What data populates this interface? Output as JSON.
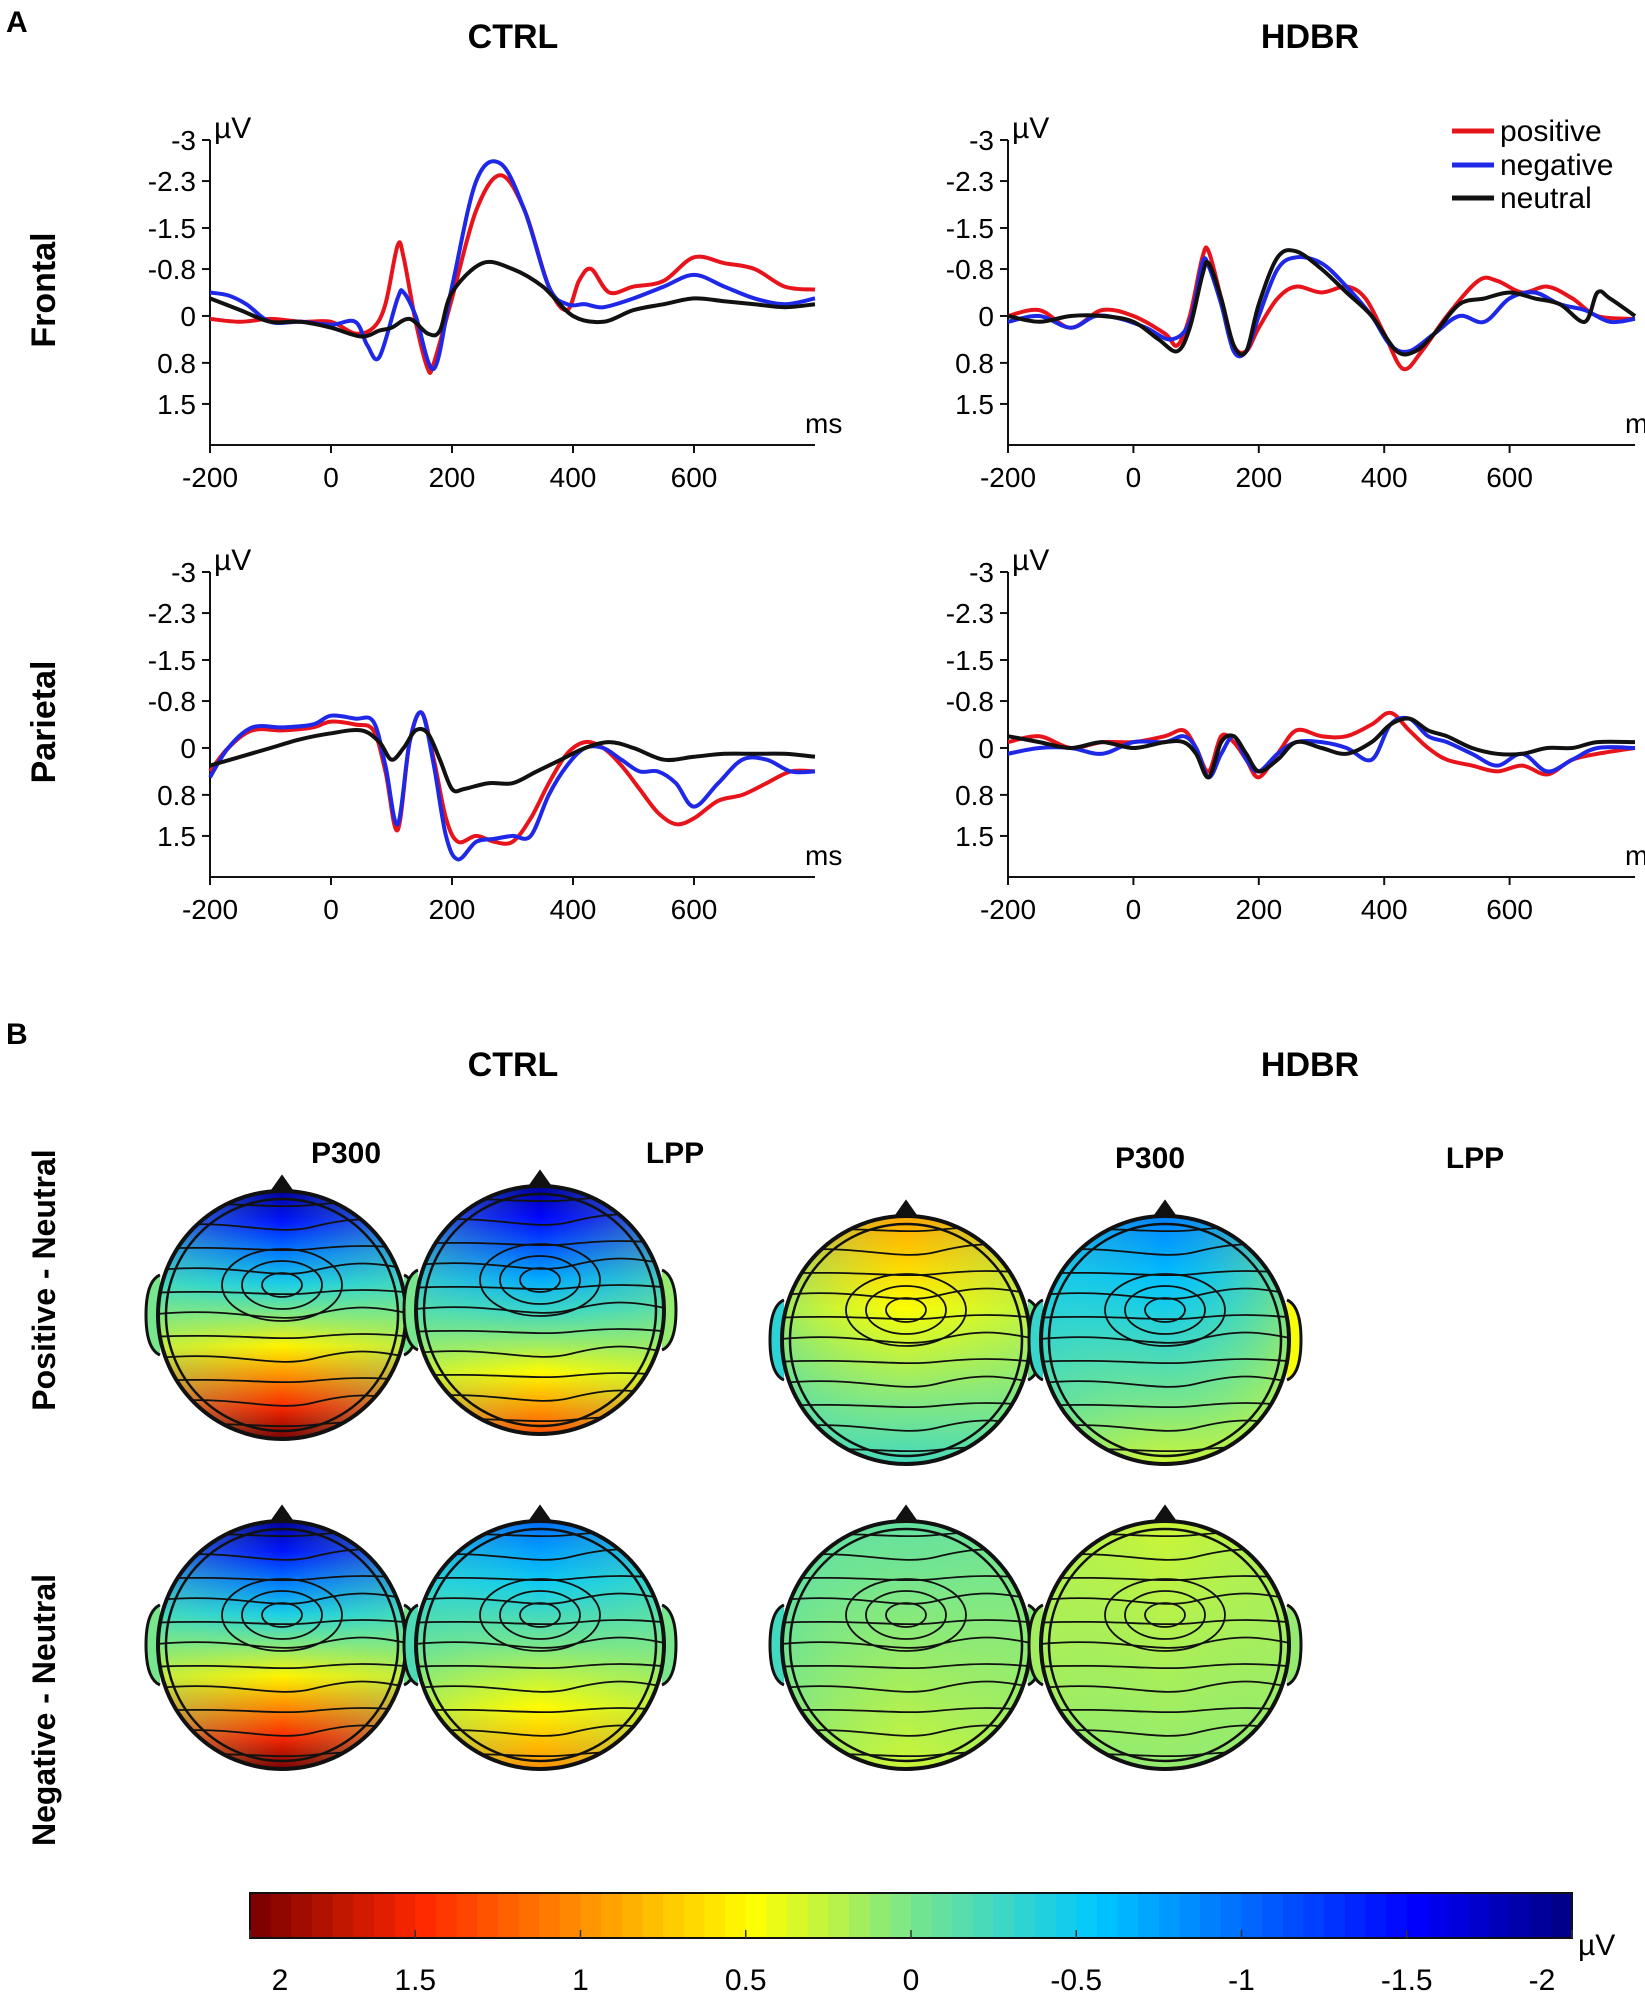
{
  "panel_a_label": "A",
  "panel_b_label": "B",
  "groups": [
    "CTRL",
    "HDBR"
  ],
  "regions": [
    "Frontal",
    "Parietal"
  ],
  "legend": [
    {
      "label": "positive",
      "color": "#e8141c"
    },
    {
      "label": "negative",
      "color": "#1e28e6"
    },
    {
      "label": "neutral",
      "color": "#111111"
    }
  ],
  "chart_data": [
    {
      "type": "line",
      "id": "ctrl-frontal",
      "group": "CTRL",
      "region": "Frontal",
      "xlabel": "ms",
      "ylabel": "µV",
      "xlim": [
        -200,
        800
      ],
      "ylim": [
        -3,
        2.2
      ],
      "x_ticks": [
        "-200",
        "0",
        "200",
        "400",
        "600"
      ],
      "y_ticks": [
        "-3",
        "-2.3",
        "-1.5",
        "-0.8",
        "0",
        "0.8",
        "1.5"
      ],
      "y_tick_values": [
        -3,
        -2.3,
        -1.5,
        -0.8,
        0,
        0.8,
        1.5
      ],
      "series": [
        {
          "name": "positive",
          "x": [
            -200,
            -150,
            -100,
            -50,
            0,
            40,
            70,
            90,
            110,
            120,
            140,
            160,
            170,
            200,
            240,
            280,
            320,
            360,
            390,
            410,
            430,
            460,
            500,
            550,
            600,
            650,
            700,
            750,
            800
          ],
          "y": [
            0.05,
            0.1,
            0.05,
            0.1,
            0.1,
            0.3,
            0.2,
            -0.2,
            -1.2,
            -1.0,
            0.1,
            0.9,
            0.8,
            -0.3,
            -1.8,
            -2.4,
            -1.8,
            -0.5,
            -0.1,
            -0.6,
            -0.8,
            -0.4,
            -0.5,
            -0.6,
            -1.0,
            -0.9,
            -0.8,
            -0.5,
            -0.45
          ]
        },
        {
          "name": "negative",
          "x": [
            -200,
            -170,
            -140,
            -100,
            -50,
            0,
            40,
            60,
            80,
            110,
            120,
            140,
            170,
            200,
            240,
            280,
            320,
            360,
            390,
            420,
            450,
            500,
            550,
            600,
            650,
            700,
            750,
            800
          ],
          "y": [
            -0.4,
            -0.35,
            -0.2,
            0.1,
            0.1,
            0.15,
            0.1,
            0.5,
            0.7,
            -0.3,
            -0.4,
            0.0,
            0.9,
            -0.5,
            -2.3,
            -2.6,
            -1.8,
            -0.5,
            -0.2,
            -0.2,
            -0.15,
            -0.3,
            -0.5,
            -0.7,
            -0.5,
            -0.3,
            -0.2,
            -0.3
          ]
        },
        {
          "name": "neutral",
          "x": [
            -200,
            -150,
            -100,
            -50,
            0,
            50,
            80,
            100,
            130,
            160,
            180,
            200,
            250,
            300,
            350,
            400,
            450,
            500,
            550,
            600,
            650,
            700,
            750,
            800
          ],
          "y": [
            -0.3,
            -0.1,
            0.1,
            0.1,
            0.2,
            0.35,
            0.25,
            0.2,
            0.05,
            0.3,
            0.25,
            -0.4,
            -0.9,
            -0.8,
            -0.5,
            0.0,
            0.1,
            -0.1,
            -0.2,
            -0.3,
            -0.25,
            -0.2,
            -0.15,
            -0.2
          ]
        }
      ]
    },
    {
      "type": "line",
      "id": "hdbr-frontal",
      "group": "HDBR",
      "region": "Frontal",
      "xlabel": "ms",
      "ylabel": "µV",
      "xlim": [
        -200,
        800
      ],
      "ylim": [
        -3,
        2.2
      ],
      "x_ticks": [
        "-200",
        "0",
        "200",
        "400",
        "600"
      ],
      "y_ticks": [
        "-3",
        "-2.3",
        "-1.5",
        "-0.8",
        "0",
        "0.8",
        "1.5"
      ],
      "y_tick_values": [
        -3,
        -2.3,
        -1.5,
        -0.8,
        0,
        0.8,
        1.5
      ],
      "series": [
        {
          "name": "positive",
          "x": [
            -200,
            -150,
            -100,
            -50,
            0,
            50,
            70,
            90,
            110,
            120,
            140,
            160,
            180,
            200,
            230,
            260,
            300,
            340,
            370,
            400,
            430,
            460,
            500,
            550,
            580,
            620,
            660,
            700,
            740,
            800
          ],
          "y": [
            0.0,
            -0.1,
            0.2,
            -0.1,
            0.0,
            0.3,
            0.5,
            0.0,
            -1.0,
            -1.1,
            -0.3,
            0.5,
            0.6,
            0.2,
            -0.3,
            -0.5,
            -0.4,
            -0.5,
            -0.3,
            0.3,
            0.9,
            0.6,
            0.0,
            -0.6,
            -0.6,
            -0.4,
            -0.5,
            -0.3,
            0.0,
            0.05
          ]
        },
        {
          "name": "negative",
          "x": [
            -200,
            -150,
            -100,
            -60,
            -20,
            20,
            60,
            90,
            110,
            120,
            140,
            160,
            180,
            200,
            230,
            260,
            300,
            340,
            380,
            410,
            440,
            480,
            520,
            560,
            600,
            640,
            680,
            720,
            760,
            800
          ],
          "y": [
            0.1,
            0.0,
            0.2,
            0.0,
            0.05,
            0.2,
            0.4,
            0.1,
            -0.9,
            -0.85,
            -0.2,
            0.6,
            0.6,
            0.0,
            -0.8,
            -1.0,
            -0.9,
            -0.5,
            0.0,
            0.5,
            0.6,
            0.3,
            0.0,
            0.1,
            -0.3,
            -0.4,
            -0.2,
            -0.1,
            0.1,
            0.05
          ]
        },
        {
          "name": "neutral",
          "x": [
            -200,
            -150,
            -100,
            -50,
            0,
            40,
            70,
            90,
            110,
            120,
            140,
            160,
            180,
            200,
            230,
            260,
            300,
            340,
            380,
            420,
            450,
            480,
            520,
            560,
            600,
            640,
            680,
            720,
            740,
            760,
            800
          ],
          "y": [
            0.0,
            0.1,
            0.0,
            0.0,
            0.1,
            0.4,
            0.6,
            0.2,
            -0.7,
            -0.9,
            -0.3,
            0.5,
            0.6,
            -0.2,
            -1.0,
            -1.1,
            -0.8,
            -0.4,
            0.0,
            0.6,
            0.6,
            0.3,
            -0.2,
            -0.3,
            -0.4,
            -0.3,
            -0.2,
            0.1,
            -0.4,
            -0.3,
            0.0
          ]
        }
      ]
    },
    {
      "type": "line",
      "id": "ctrl-parietal",
      "group": "CTRL",
      "region": "Parietal",
      "xlabel": "ms",
      "ylabel": "µV",
      "xlim": [
        -200,
        800
      ],
      "ylim": [
        -3,
        2.2
      ],
      "x_ticks": [
        "-200",
        "0",
        "200",
        "400",
        "600"
      ],
      "y_ticks": [
        "-3",
        "-2.3",
        "-1.5",
        "-0.8",
        "0",
        "0.8",
        "1.5"
      ],
      "y_tick_values": [
        -3,
        -2.3,
        -1.5,
        -0.8,
        0,
        0.8,
        1.5
      ],
      "series": [
        {
          "name": "positive",
          "x": [
            -200,
            -170,
            -130,
            -80,
            -30,
            0,
            40,
            70,
            90,
            110,
            130,
            150,
            170,
            190,
            210,
            240,
            270,
            300,
            330,
            360,
            390,
            420,
            450,
            480,
            510,
            540,
            570,
            600,
            640,
            680,
            720,
            760,
            800
          ],
          "y": [
            0.4,
            0.0,
            -0.3,
            -0.3,
            -0.35,
            -0.45,
            -0.4,
            -0.3,
            0.4,
            1.4,
            -0.1,
            -0.6,
            0.2,
            1.2,
            1.6,
            1.5,
            1.6,
            1.6,
            1.2,
            0.6,
            0.1,
            -0.1,
            0.0,
            0.3,
            0.7,
            1.1,
            1.3,
            1.2,
            0.9,
            0.8,
            0.6,
            0.4,
            0.4
          ]
        },
        {
          "name": "negative",
          "x": [
            -200,
            -170,
            -130,
            -80,
            -30,
            0,
            40,
            70,
            90,
            110,
            130,
            150,
            170,
            190,
            210,
            240,
            270,
            300,
            330,
            360,
            390,
            420,
            450,
            480,
            510,
            540,
            570,
            600,
            640,
            680,
            720,
            760,
            800
          ],
          "y": [
            0.5,
            0.0,
            -0.35,
            -0.35,
            -0.4,
            -0.55,
            -0.5,
            -0.45,
            0.3,
            1.3,
            -0.1,
            -0.6,
            0.3,
            1.5,
            1.9,
            1.6,
            1.55,
            1.5,
            1.5,
            0.8,
            0.3,
            0.0,
            0.0,
            0.2,
            0.4,
            0.4,
            0.6,
            1.0,
            0.6,
            0.2,
            0.2,
            0.4,
            0.4
          ]
        },
        {
          "name": "neutral",
          "x": [
            -200,
            -150,
            -100,
            -50,
            0,
            50,
            80,
            100,
            120,
            140,
            160,
            180,
            200,
            220,
            260,
            300,
            340,
            380,
            420,
            460,
            500,
            550,
            600,
            650,
            700,
            750,
            800
          ],
          "y": [
            0.3,
            0.15,
            0.0,
            -0.15,
            -0.25,
            -0.3,
            -0.1,
            0.2,
            0.0,
            -0.3,
            -0.25,
            0.2,
            0.7,
            0.7,
            0.6,
            0.6,
            0.4,
            0.2,
            0.0,
            -0.1,
            0.0,
            0.2,
            0.15,
            0.1,
            0.1,
            0.1,
            0.15
          ]
        }
      ]
    },
    {
      "type": "line",
      "id": "hdbr-parietal",
      "group": "HDBR",
      "region": "Parietal",
      "xlabel": "ms",
      "ylabel": "µV",
      "xlim": [
        -200,
        800
      ],
      "ylim": [
        -3,
        2.2
      ],
      "x_ticks": [
        "-200",
        "0",
        "200",
        "400",
        "600"
      ],
      "y_ticks": [
        "-3",
        "-2.3",
        "-1.5",
        "-0.8",
        "0",
        "0.8",
        "1.5"
      ],
      "y_tick_values": [
        -3,
        -2.3,
        -1.5,
        -0.8,
        0,
        0.8,
        1.5
      ],
      "series": [
        {
          "name": "positive",
          "x": [
            -200,
            -150,
            -100,
            -50,
            0,
            50,
            80,
            100,
            120,
            140,
            160,
            180,
            200,
            230,
            260,
            300,
            340,
            380,
            410,
            440,
            470,
            500,
            540,
            580,
            620,
            660,
            700,
            740,
            800
          ],
          "y": [
            -0.1,
            -0.2,
            0.0,
            -0.1,
            -0.1,
            -0.2,
            -0.3,
            0.0,
            0.4,
            -0.2,
            -0.1,
            0.2,
            0.5,
            0.1,
            -0.3,
            -0.2,
            -0.2,
            -0.4,
            -0.6,
            -0.3,
            0.0,
            0.2,
            0.3,
            0.4,
            0.3,
            0.45,
            0.2,
            0.1,
            0.0
          ]
        },
        {
          "name": "negative",
          "x": [
            -200,
            -150,
            -100,
            -50,
            0,
            50,
            80,
            100,
            120,
            140,
            160,
            180,
            200,
            230,
            260,
            300,
            340,
            380,
            410,
            440,
            470,
            500,
            540,
            580,
            620,
            660,
            700,
            740,
            800
          ],
          "y": [
            0.1,
            0.0,
            0.0,
            0.1,
            -0.1,
            -0.1,
            -0.2,
            0.0,
            0.5,
            0.1,
            -0.2,
            0.2,
            0.4,
            0.1,
            -0.1,
            -0.1,
            0.0,
            0.2,
            -0.4,
            -0.5,
            -0.2,
            -0.1,
            0.1,
            0.3,
            0.1,
            0.4,
            0.2,
            0.0,
            0.0
          ]
        },
        {
          "name": "neutral",
          "x": [
            -200,
            -150,
            -100,
            -50,
            0,
            50,
            80,
            100,
            120,
            140,
            160,
            180,
            200,
            230,
            260,
            300,
            340,
            380,
            410,
            440,
            470,
            500,
            540,
            580,
            620,
            660,
            700,
            740,
            800
          ],
          "y": [
            -0.2,
            -0.1,
            0.0,
            -0.1,
            0.0,
            -0.1,
            -0.1,
            0.1,
            0.5,
            -0.1,
            -0.2,
            0.1,
            0.4,
            0.2,
            -0.1,
            0.0,
            0.1,
            -0.1,
            -0.4,
            -0.5,
            -0.3,
            -0.2,
            0.0,
            0.1,
            0.1,
            0.0,
            0.0,
            -0.1,
            -0.1
          ]
        }
      ]
    }
  ],
  "topomaps": {
    "component_labels": [
      "P300",
      "LPP",
      "P300",
      "LPP"
    ],
    "row_labels": [
      "Positive - Neutral",
      "Negative - Neutral"
    ],
    "maps": [
      {
        "group": "CTRL",
        "component": "P300",
        "contrast": "Positive - Neutral",
        "front": -1.9,
        "back": 2.0,
        "left": 0.0,
        "right": 0.0
      },
      {
        "group": "CTRL",
        "component": "LPP",
        "contrast": "Positive - Neutral",
        "front": -1.9,
        "back": 1.3,
        "left": 0.0,
        "right": 0.1
      },
      {
        "group": "HDBR",
        "component": "P300",
        "contrast": "Positive - Neutral",
        "front": 0.9,
        "back": -0.25,
        "left": -0.35,
        "right": 0.0
      },
      {
        "group": "HDBR",
        "component": "LPP",
        "contrast": "Positive - Neutral",
        "front": -0.9,
        "back": 0.3,
        "left": -0.3,
        "right": 0.45
      },
      {
        "group": "CTRL",
        "component": "P300",
        "contrast": "Negative - Neutral",
        "front": -1.9,
        "back": 2.0,
        "left": 0.0,
        "right": 0.0
      },
      {
        "group": "CTRL",
        "component": "LPP",
        "contrast": "Negative - Neutral",
        "front": -1.0,
        "back": 1.0,
        "left": -0.2,
        "right": 0.0
      },
      {
        "group": "HDBR",
        "component": "P300",
        "contrast": "Negative - Neutral",
        "front": -0.1,
        "back": 0.3,
        "left": -0.25,
        "right": 0.05
      },
      {
        "group": "HDBR",
        "component": "LPP",
        "contrast": "Negative - Neutral",
        "front": 0.3,
        "back": 0.1,
        "left": 0.15,
        "right": 0.1
      }
    ]
  },
  "colorbar": {
    "unit": "µV",
    "range": [
      2,
      -2
    ],
    "tick_labels": [
      "2",
      "1.5",
      "1",
      "0.5",
      "0",
      "-0.5",
      "-1",
      "-1.5",
      "-2"
    ],
    "tick_values": [
      2,
      1.5,
      1,
      0.5,
      0,
      -0.5,
      -1,
      -1.5,
      -2
    ]
  }
}
